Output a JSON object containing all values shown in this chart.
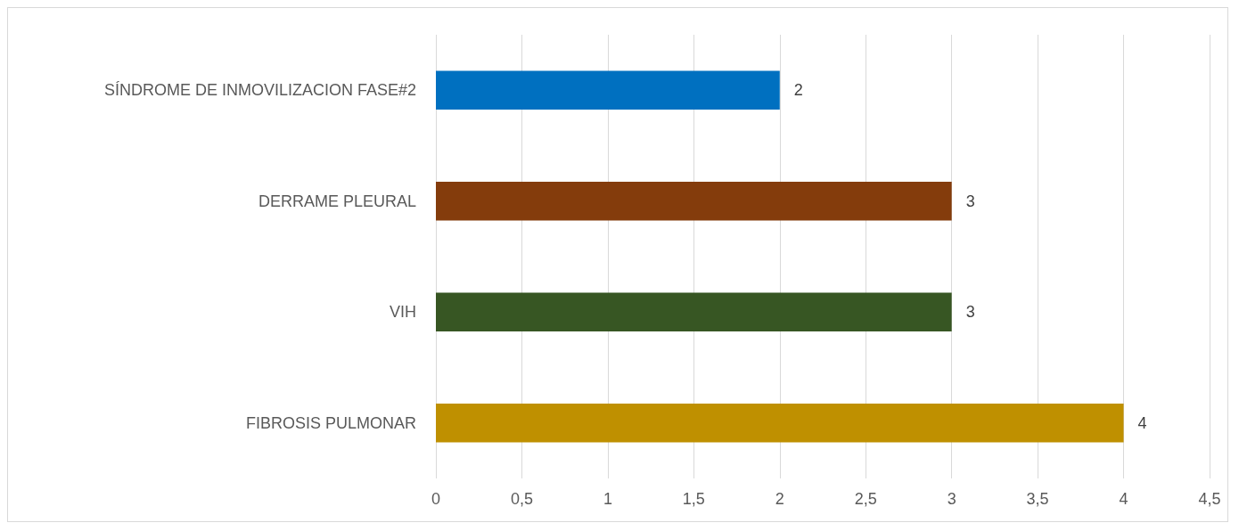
{
  "chart_data": {
    "type": "bar",
    "orientation": "horizontal",
    "categories": [
      "SÍNDROME DE INMOVILIZACION FASE#2",
      "DERRAME PLEURAL",
      "VIH",
      "FIBROSIS PULMONAR"
    ],
    "values": [
      2,
      3,
      3,
      4
    ],
    "colors": [
      "#0070c0",
      "#843c0c",
      "#375623",
      "#bf9000"
    ],
    "xlim": [
      0,
      4.5
    ],
    "xticks": [
      0,
      {
        "value": 0.5,
        "label": "0,5"
      },
      1,
      {
        "value": 1.5,
        "label": "1,5"
      },
      2,
      {
        "value": 2.5,
        "label": "2,5"
      },
      3,
      {
        "value": 3.5,
        "label": "3,5"
      },
      4,
      {
        "value": 4.5,
        "label": "4,5"
      }
    ],
    "grid": "x",
    "data_labels": true
  }
}
